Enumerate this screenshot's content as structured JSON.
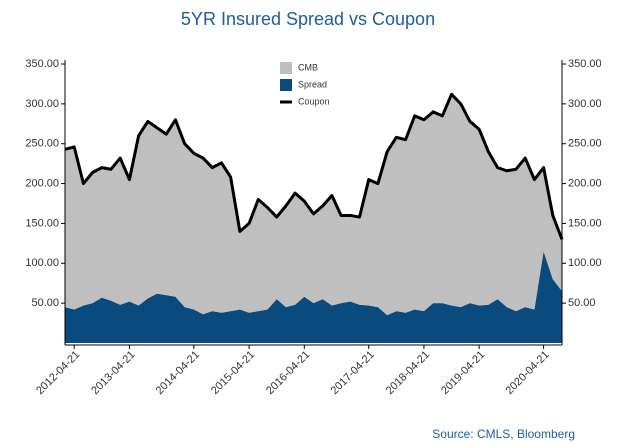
{
  "chart_data": {
    "type": "area",
    "title": "5YR Insured Spread vs Coupon",
    "source": "Source: CMLS, Bloomberg",
    "categories": [
      null,
      "2012-04-21",
      null,
      null,
      null,
      null,
      null,
      "2013-04-21",
      null,
      null,
      null,
      null,
      null,
      null,
      "2014-04-21",
      null,
      null,
      null,
      null,
      null,
      "2015-04-21",
      null,
      null,
      null,
      null,
      null,
      "2016-04-21",
      null,
      null,
      null,
      null,
      null,
      null,
      "2017-04-21",
      null,
      null,
      null,
      null,
      null,
      "2018-04-21",
      null,
      null,
      null,
      null,
      null,
      "2019-04-21",
      null,
      null,
      null,
      null,
      null,
      null,
      "2020-04-21",
      null,
      null
    ],
    "series": [
      {
        "name": "CMB",
        "color": "#bfbfbf",
        "stack": true,
        "values": [
          198,
          204,
          153,
          164,
          163,
          165,
          184,
          153,
          213,
          222,
          208,
          202,
          222,
          205,
          196,
          196,
          180,
          188,
          168,
          98,
          112,
          140,
          128,
          103,
          127,
          140,
          120,
          112,
          117,
          138,
          110,
          108,
          110,
          158,
          155,
          205,
          218,
          217,
          243,
          240,
          240,
          235,
          265,
          255,
          228,
          221,
          192,
          165,
          171,
          178,
          187,
          163,
          105,
          80,
          65
        ]
      },
      {
        "name": "Spread",
        "color": "#0b4a7d",
        "stack": true,
        "values": [
          45,
          42,
          47,
          50,
          57,
          53,
          48,
          52,
          47,
          56,
          62,
          60,
          58,
          45,
          42,
          36,
          40,
          38,
          40,
          42,
          38,
          40,
          42,
          55,
          45,
          48,
          58,
          50,
          55,
          47,
          50,
          52,
          48,
          47,
          45,
          35,
          40,
          38,
          42,
          40,
          50,
          50,
          47,
          45,
          50,
          47,
          48,
          55,
          45,
          40,
          45,
          42,
          115,
          80,
          65
        ]
      },
      {
        "name": "Coupon",
        "color": "#000000",
        "type": "line",
        "values": [
          243,
          246,
          200,
          214,
          220,
          218,
          232,
          205,
          260,
          278,
          270,
          262,
          280,
          250,
          238,
          232,
          220,
          226,
          208,
          140,
          150,
          180,
          170,
          158,
          172,
          188,
          178,
          162,
          172,
          185,
          160,
          160,
          158,
          205,
          200,
          240,
          258,
          255,
          285,
          280,
          290,
          285,
          312,
          300,
          278,
          268,
          240,
          220,
          216,
          218,
          232,
          205,
          220,
          160,
          130
        ]
      }
    ],
    "ylim": [
      0,
      350
    ],
    "yticks": [
      {
        "value": 50,
        "label": "50.00"
      },
      {
        "value": 100,
        "label": "100.00"
      },
      {
        "value": 150,
        "label": "150.00"
      },
      {
        "value": 200,
        "label": "200.00"
      },
      {
        "value": 250,
        "label": "250.00"
      },
      {
        "value": 300,
        "label": "300.00"
      },
      {
        "value": 350,
        "label": "350.00"
      }
    ],
    "y2lim": [
      0,
      350
    ],
    "y2ticks": [
      {
        "value": 50,
        "label": "50.00"
      },
      {
        "value": 100,
        "label": "100.00"
      },
      {
        "value": 150,
        "label": "150.00"
      },
      {
        "value": 200,
        "label": "200.00"
      },
      {
        "value": 250,
        "label": "250.00"
      },
      {
        "value": 300,
        "label": "300.00"
      },
      {
        "value": 350,
        "label": "350.00"
      }
    ],
    "legend": "top"
  }
}
